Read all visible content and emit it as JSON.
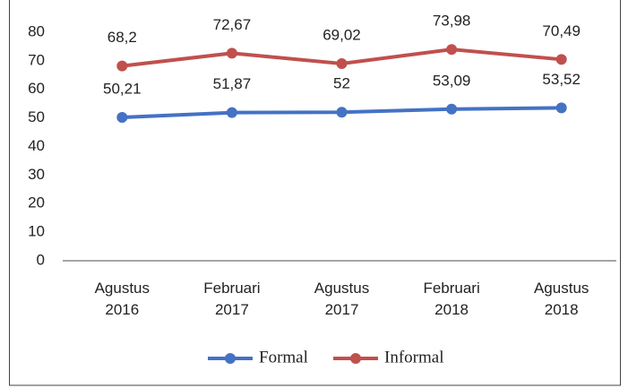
{
  "chart_data": {
    "type": "line",
    "categories": [
      "Agustus 2016",
      "Februari 2017",
      "Agustus 2017",
      "Februari 2018",
      "Agustus 2018"
    ],
    "series": [
      {
        "name": "Formal",
        "color": "#4472c4",
        "values": [
          50.21,
          51.87,
          52,
          53.09,
          53.52
        ],
        "value_labels": [
          "50,21",
          "51,87",
          "52",
          "53,09",
          "53,52"
        ]
      },
      {
        "name": "Informal",
        "color": "#c0504d",
        "values": [
          68.2,
          72.67,
          69.02,
          73.98,
          70.49
        ],
        "value_labels": [
          "68,2",
          "72,67",
          "69,02",
          "73,98",
          "70,49"
        ]
      }
    ],
    "ylim": [
      0,
      80
    ],
    "yticks": [
      0,
      10,
      20,
      30,
      40,
      50,
      60,
      70,
      80
    ],
    "grid": false,
    "legend": "bottom"
  }
}
